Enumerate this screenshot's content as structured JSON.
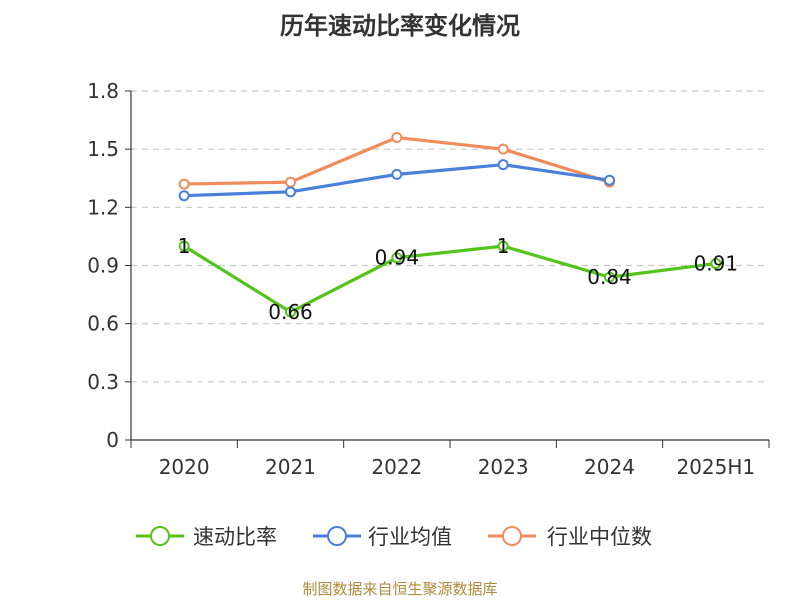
{
  "chart_data": {
    "type": "line",
    "title": "历年速动比率变化情况",
    "categories": [
      "2020",
      "2021",
      "2022",
      "2023",
      "2024",
      "2025H1"
    ],
    "ylim": [
      0,
      1.8
    ],
    "yticks": [
      "0",
      "0.3",
      "0.6",
      "0.9",
      "1.2",
      "1.5",
      "1.8"
    ],
    "grid": true,
    "legend_position": "bottom",
    "series": [
      {
        "name": "速动比率",
        "color": "#52c41a",
        "values": [
          1,
          0.66,
          0.94,
          1,
          0.84,
          0.91
        ],
        "labels": [
          "1",
          "0.66",
          "0.94",
          "1",
          "0.84",
          "0.91"
        ]
      },
      {
        "name": "行业均值",
        "color": "#4a80d9",
        "values": [
          1.26,
          1.28,
          1.37,
          1.42,
          1.34,
          null
        ]
      },
      {
        "name": "行业中位数",
        "color": "#f08c5c",
        "values": [
          1.32,
          1.33,
          1.56,
          1.5,
          1.33,
          null
        ]
      }
    ]
  },
  "source": "制图数据来自恒生聚源数据库"
}
